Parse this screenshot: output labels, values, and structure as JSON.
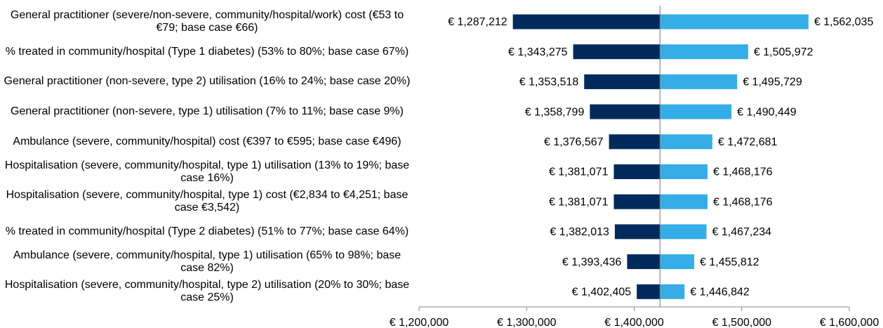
{
  "chart_data": {
    "type": "tornado",
    "categories": [
      "General practitioner (severe/non-severe, community/hospital/work) cost (€53 to €79; base case €66)",
      "% treated in community/hospital (Type 1 diabetes) (53% to 80%; base case 67%)",
      "General practitioner (non-severe, type 2) utilisation (16% to 24%; base case 20%)",
      "General practitioner (non-severe, type 1) utilisation (7% to 11%; base case 9%)",
      "Ambulance (severe, community/hospital) cost (€397 to €595; base case €496)",
      "Hospitalisation (severe, community/hospital, type 1) utilisation (13% to 19%; base case 16%)",
      "Hospitalisation (severe, community/hospital, type 1) cost (€2,834 to €4,251; base case €3,542)",
      "% treated in community/hospital (Type 2 diabetes) (51% to 77%; base case 64%)",
      "Ambulance (severe, community/hospital, type 1) utilisation (65% to 98%; base case 82%)",
      "Hospitalisation (severe, community/hospital, type 2) utilisation (20% to 30%; base case 25%)"
    ],
    "base": 1424000,
    "series": [
      {
        "color": "#002a5c",
        "values": [
          1287212,
          1343275,
          1353518,
          1358799,
          1376567,
          1381071,
          1381071,
          1382013,
          1393436,
          1402405
        ],
        "value_labels": [
          "€ 1,287,212",
          "€ 1,343,275",
          "€ 1,353,518",
          "€ 1,358,799",
          "€ 1,376,567",
          "€ 1,381,071",
          "€ 1,381,071",
          "€ 1,382,013",
          "€ 1,393,436",
          "€ 1,402,405"
        ]
      },
      {
        "color": "#35ade6",
        "values": [
          1562035,
          1505972,
          1495729,
          1490449,
          1472681,
          1468176,
          1468176,
          1467234,
          1455812,
          1446842
        ],
        "value_labels": [
          "€ 1,562,035",
          "€ 1,505,972",
          "€ 1,495,729",
          "€ 1,490,449",
          "€ 1,472,681",
          "€ 1,468,176",
          "€ 1,468,176",
          "€ 1,467,234",
          "€ 1,455,812",
          "€ 1,446,842"
        ]
      }
    ],
    "xlim": [
      1200000,
      1600000
    ],
    "xticks": [
      {
        "value": 1200000,
        "label": "€ 1,200,000"
      },
      {
        "value": 1300000,
        "label": "€ 1,300,000"
      },
      {
        "value": 1400000,
        "label": "€ 1,400,000"
      },
      {
        "value": 1500000,
        "label": "€ 1,500,000"
      },
      {
        "value": 1600000,
        "label": "€ 1,600,000"
      }
    ]
  }
}
